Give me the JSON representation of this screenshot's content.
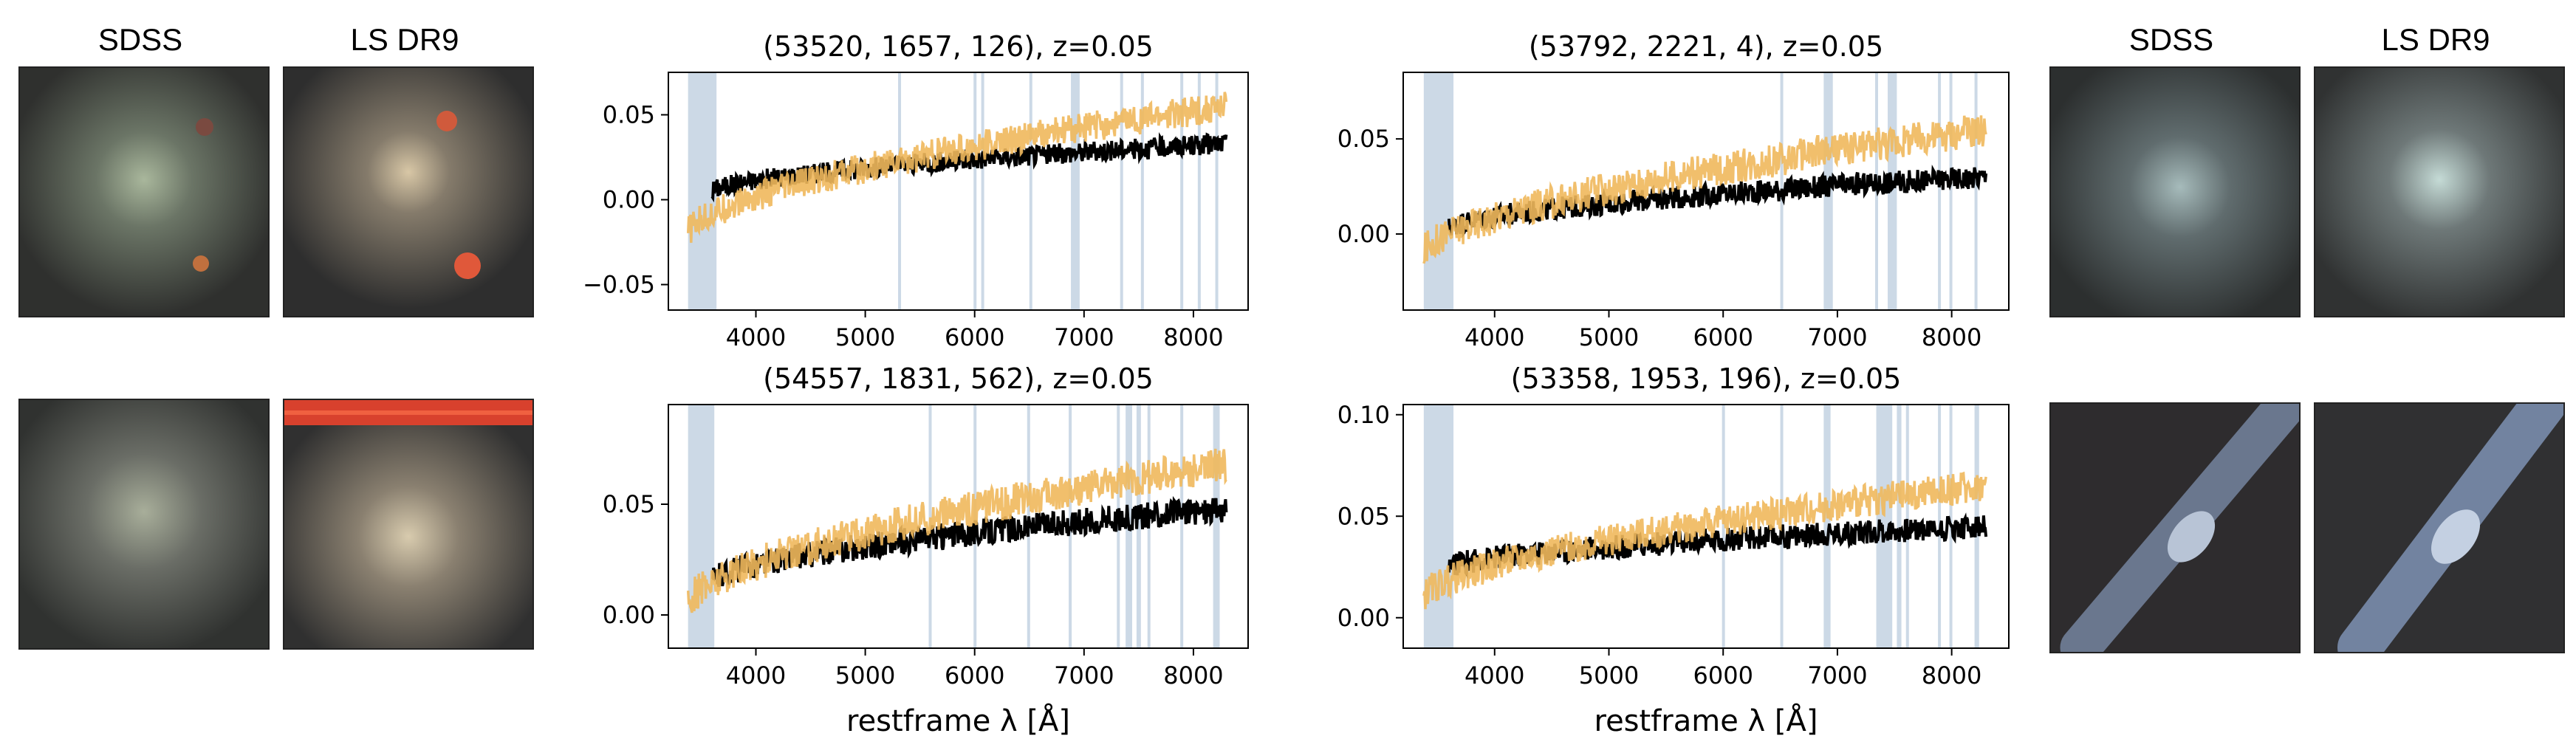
{
  "image_labels": {
    "left_sdss": "SDSS",
    "left_ls": "LS DR9",
    "right_sdss": "SDSS",
    "right_ls": "LS DR9"
  },
  "colors": {
    "black_series": "#000000",
    "orange_series": "#f0b85c",
    "mask": "#c3d2e2"
  },
  "chart_data": [
    {
      "type": "line",
      "title": "(53520, 1657, 126), z=0.05",
      "xlabel": "",
      "ylabel": "",
      "xlim": [
        3200,
        8500
      ],
      "ylim": [
        -0.065,
        0.075
      ],
      "xticks": [
        4000,
        5000,
        6000,
        7000,
        8000
      ],
      "xtick_labels": [
        "4000",
        "5000",
        "6000",
        "7000",
        "8000"
      ],
      "yticks": [
        -0.05,
        0.0,
        0.05
      ],
      "ytick_labels": [
        "−0.05",
        "0.00",
        "0.05"
      ],
      "masked_regions": [
        [
          3380,
          3640
        ],
        [
          5300,
          5320
        ],
        [
          5990,
          6010
        ],
        [
          6060,
          6080
        ],
        [
          6500,
          6520
        ],
        [
          6880,
          6960
        ],
        [
          7330,
          7350
        ],
        [
          7520,
          7540
        ],
        [
          7880,
          7900
        ],
        [
          8040,
          8060
        ],
        [
          8200,
          8220
        ]
      ],
      "series": [
        {
          "name": "black",
          "color": "#000000",
          "x_range": [
            3600,
            8300
          ],
          "start": 0.005,
          "end": 0.033,
          "noise": 0.006
        },
        {
          "name": "orange",
          "color": "#f0b85c",
          "x_range": [
            3380,
            8300
          ],
          "start": -0.02,
          "end": 0.055,
          "noise": 0.009
        }
      ]
    },
    {
      "type": "line",
      "title": "(53792, 2221, 4), z=0.05",
      "xlabel": "",
      "ylabel": "",
      "xlim": [
        3200,
        8500
      ],
      "ylim": [
        -0.04,
        0.085
      ],
      "xticks": [
        4000,
        5000,
        6000,
        7000,
        8000
      ],
      "xtick_labels": [
        "4000",
        "5000",
        "6000",
        "7000",
        "8000"
      ],
      "yticks": [
        0.0,
        0.05
      ],
      "ytick_labels": [
        "0.00",
        "0.05"
      ],
      "masked_regions": [
        [
          3380,
          3640
        ],
        [
          6500,
          6520
        ],
        [
          6880,
          6960
        ],
        [
          7330,
          7350
        ],
        [
          7440,
          7520
        ],
        [
          7880,
          7900
        ],
        [
          7980,
          8000
        ],
        [
          8200,
          8220
        ]
      ],
      "series": [
        {
          "name": "black",
          "color": "#000000",
          "x_range": [
            3600,
            8300
          ],
          "start": 0.003,
          "end": 0.03,
          "noise": 0.006
        },
        {
          "name": "orange",
          "color": "#f0b85c",
          "x_range": [
            3380,
            8300
          ],
          "start": -0.01,
          "end": 0.055,
          "noise": 0.009
        }
      ]
    },
    {
      "type": "line",
      "title": "(54557, 1831, 562), z=0.05",
      "xlabel": "restframe λ [Å]",
      "ylabel": "",
      "xlim": [
        3200,
        8500
      ],
      "ylim": [
        -0.015,
        0.095
      ],
      "xticks": [
        4000,
        5000,
        6000,
        7000,
        8000
      ],
      "xtick_labels": [
        "4000",
        "5000",
        "6000",
        "7000",
        "8000"
      ],
      "yticks": [
        0.0,
        0.05
      ],
      "ytick_labels": [
        "0.00",
        "0.05"
      ],
      "masked_regions": [
        [
          3380,
          3620
        ],
        [
          5580,
          5600
        ],
        [
          5990,
          6010
        ],
        [
          6480,
          6500
        ],
        [
          6860,
          6880
        ],
        [
          7300,
          7320
        ],
        [
          7380,
          7440
        ],
        [
          7480,
          7520
        ],
        [
          7580,
          7600
        ],
        [
          7880,
          7900
        ],
        [
          8180,
          8240
        ]
      ],
      "series": [
        {
          "name": "black",
          "color": "#000000",
          "x_range": [
            3600,
            8300
          ],
          "start": 0.015,
          "end": 0.048,
          "noise": 0.006
        },
        {
          "name": "orange",
          "color": "#f0b85c",
          "x_range": [
            3380,
            8300
          ],
          "start": 0.005,
          "end": 0.068,
          "noise": 0.008
        }
      ]
    },
    {
      "type": "line",
      "title": "(53358, 1953, 196), z=0.05",
      "xlabel": "restframe λ [Å]",
      "ylabel": "",
      "xlim": [
        3200,
        8500
      ],
      "ylim": [
        -0.015,
        0.105
      ],
      "xticks": [
        4000,
        5000,
        6000,
        7000,
        8000
      ],
      "xtick_labels": [
        "4000",
        "5000",
        "6000",
        "7000",
        "8000"
      ],
      "yticks": [
        0.0,
        0.05,
        0.1
      ],
      "ytick_labels": [
        "0.00",
        "0.05",
        "0.10"
      ],
      "masked_regions": [
        [
          3380,
          3640
        ],
        [
          5990,
          6010
        ],
        [
          6500,
          6520
        ],
        [
          6880,
          6940
        ],
        [
          7340,
          7480
        ],
        [
          7520,
          7560
        ],
        [
          7600,
          7620
        ],
        [
          7880,
          7900
        ],
        [
          7980,
          8000
        ],
        [
          8200,
          8240
        ]
      ],
      "series": [
        {
          "name": "black",
          "color": "#000000",
          "x_range": [
            3600,
            8300
          ],
          "start": 0.025,
          "end": 0.045,
          "noise": 0.006
        },
        {
          "name": "orange",
          "color": "#f0b85c",
          "x_range": [
            3380,
            8300
          ],
          "start": 0.01,
          "end": 0.065,
          "noise": 0.008
        }
      ]
    }
  ]
}
